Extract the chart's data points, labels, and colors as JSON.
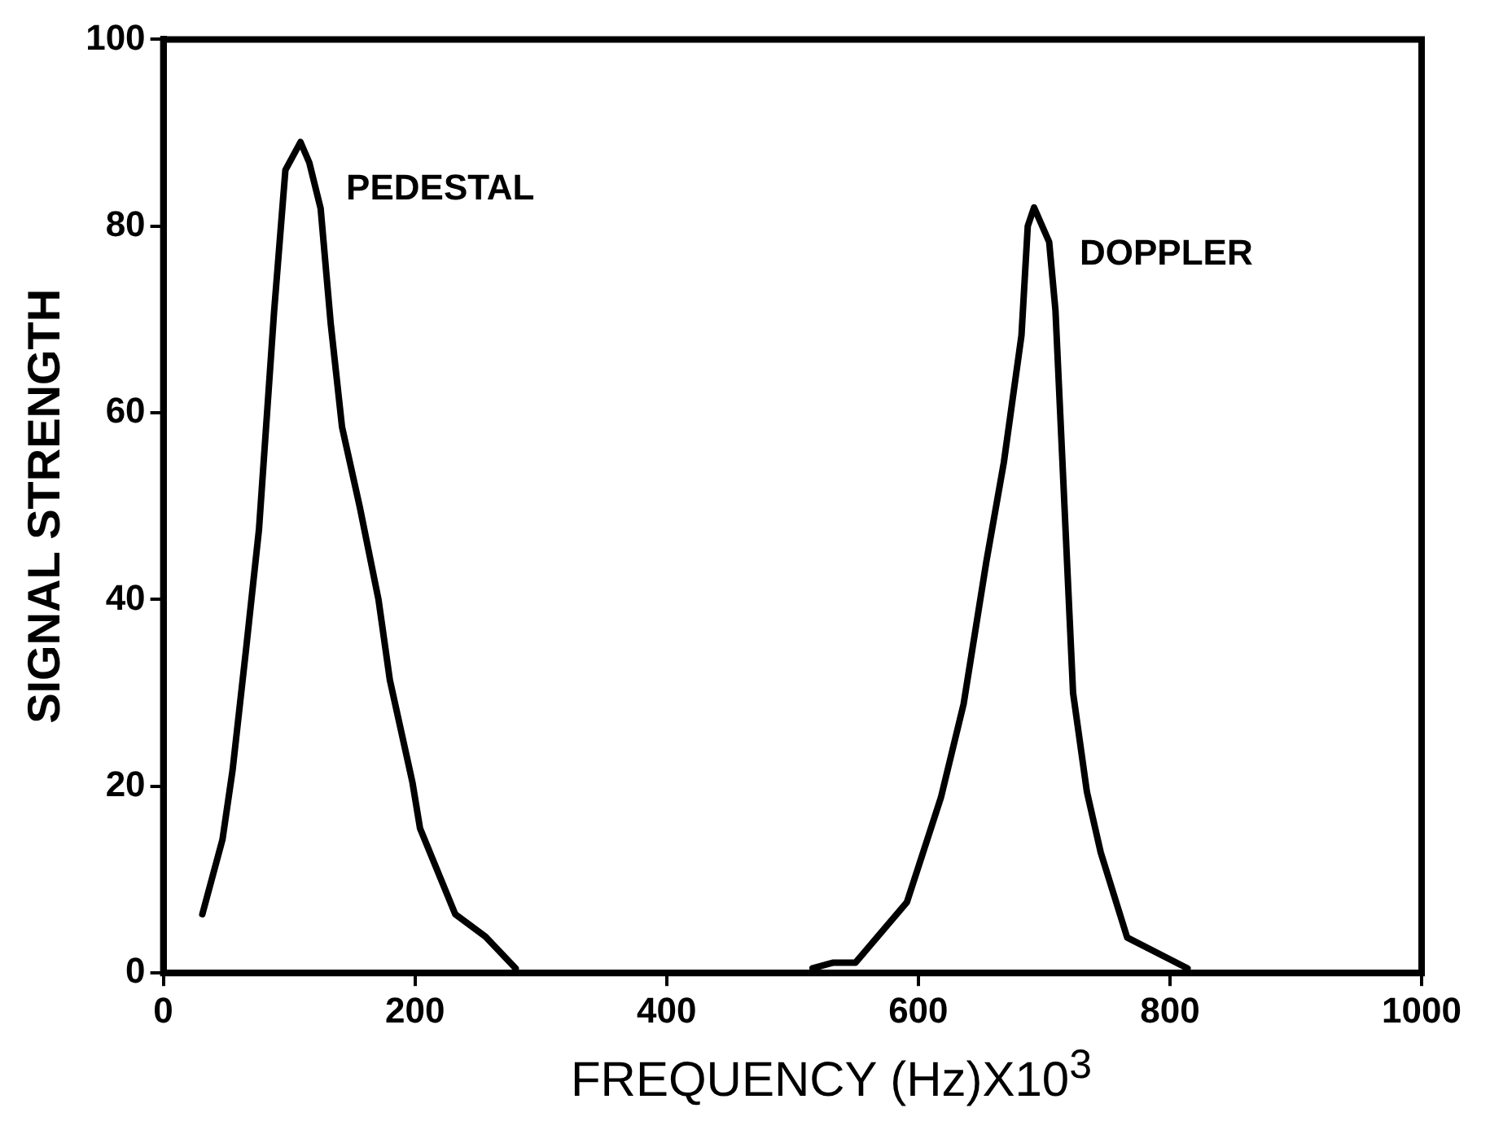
{
  "chart_data": {
    "type": "line",
    "xlabel": "FREQUENCY (Hz)X10$^{3}$",
    "ylabel": "SIGNAL STRENGTH",
    "xlim": [
      0,
      1000
    ],
    "ylim": [
      0,
      100
    ],
    "xticks": [
      0,
      200,
      400,
      600,
      800,
      1000
    ],
    "yticks": [
      0,
      20,
      40,
      60,
      80,
      100
    ],
    "grid": false,
    "legend": false,
    "marker": "none",
    "line_style": "solid",
    "series": [
      {
        "name": "PEDESTAL",
        "color": "#000000",
        "x": [
          31,
          47,
          55,
          66,
          76,
          88,
          97,
          109,
          116,
          125,
          133,
          142,
          156,
          171,
          180,
          198,
          204,
          232,
          256,
          280
        ],
        "values": [
          6.3,
          14.3,
          21.7,
          35,
          47.5,
          70.8,
          86,
          89,
          86.8,
          81.9,
          69.6,
          58.5,
          50,
          40,
          31.4,
          20.4,
          15.5,
          6.3,
          3.9,
          0.5
        ]
      },
      {
        "name": "DOPPLER",
        "color": "#000000",
        "x": [
          516,
          532,
          550,
          591,
          618,
          636,
          654,
          668,
          682,
          687,
          692,
          704,
          709,
          723,
          734,
          745,
          766,
          814
        ],
        "values": [
          0.5,
          1.1,
          1.1,
          7.6,
          18.8,
          28.8,
          44,
          54.7,
          68.3,
          80,
          82,
          78.3,
          71,
          30,
          19.4,
          12.9,
          3.8,
          0.5
        ]
      }
    ]
  }
}
